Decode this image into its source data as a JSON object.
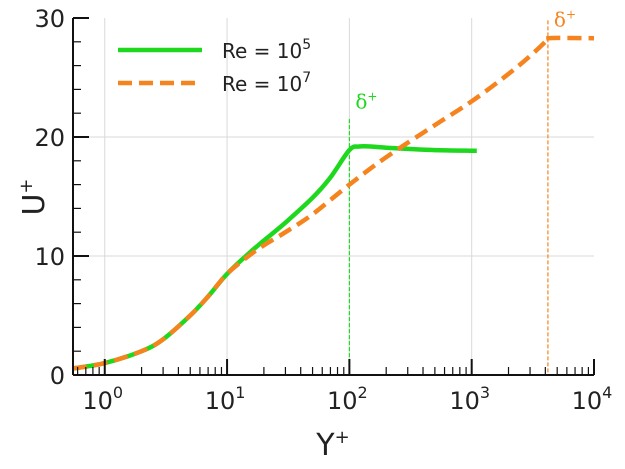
{
  "chart_data": {
    "type": "line",
    "xscale": "log",
    "xlim": [
      0.55,
      10000
    ],
    "ylim": [
      0,
      30
    ],
    "xlabel": "Y",
    "xlabel_sup": "+",
    "ylabel": "U",
    "ylabel_sup": "+",
    "grid": true,
    "legend_position": "top-left",
    "x_ticks": [
      {
        "value": 1,
        "base": "10",
        "exp": "0"
      },
      {
        "value": 10,
        "base": "10",
        "exp": "1"
      },
      {
        "value": 100,
        "base": "10",
        "exp": "2"
      },
      {
        "value": 1000,
        "base": "10",
        "exp": "3"
      },
      {
        "value": 10000,
        "base": "10",
        "exp": "4"
      }
    ],
    "y_ticks": [
      {
        "value": 0,
        "label": "0"
      },
      {
        "value": 10,
        "label": "10"
      },
      {
        "value": 20,
        "label": "20"
      },
      {
        "value": 30,
        "label": "30"
      }
    ],
    "series": [
      {
        "name_base": "Re = 10",
        "name_exp": "5",
        "color": "#1ed81e",
        "style": "solid",
        "x": [
          0.55,
          1,
          2,
          3,
          5,
          7,
          10,
          15,
          20,
          30,
          50,
          70,
          100,
          120,
          150,
          200,
          300,
          500,
          1000,
          1100
        ],
        "y": [
          0.55,
          1.0,
          2.0,
          3.0,
          5.0,
          6.6,
          8.5,
          10.2,
          11.3,
          12.8,
          14.9,
          16.6,
          18.9,
          19.2,
          19.2,
          19.1,
          19.0,
          18.9,
          18.85,
          18.85
        ]
      },
      {
        "name_base": "Re = 10",
        "name_exp": "7",
        "color": "#f5841f",
        "style": "dashed",
        "x": [
          0.55,
          1,
          2,
          3,
          5,
          7,
          10,
          15,
          20,
          30,
          50,
          100,
          200,
          500,
          1000,
          2000,
          3000,
          4000,
          4200,
          10000
        ],
        "y": [
          0.55,
          1.0,
          2.0,
          3.0,
          5.0,
          6.6,
          8.5,
          10.0,
          10.9,
          12.0,
          13.5,
          16.0,
          18.3,
          21.0,
          23.0,
          25.3,
          26.8,
          28.0,
          28.3,
          28.3
        ]
      }
    ],
    "annotations": [
      {
        "text": "δ",
        "sup": "+",
        "x": 100,
        "color": "#1ed81e",
        "line_top": 21.5,
        "label_y": 22.4
      },
      {
        "text": "δ",
        "sup": "+",
        "x": 4200,
        "color": "#f5841f",
        "line_top": 29.8,
        "label_y": 29.3
      }
    ]
  }
}
